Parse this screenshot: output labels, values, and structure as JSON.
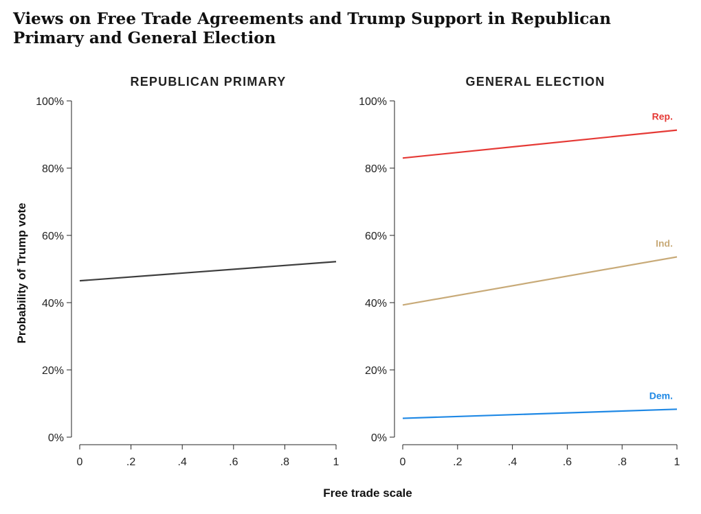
{
  "title": "Views on Free Trade Agreements and Trump Support in Republican Primary and General Election",
  "xlabel": "Free trade scale",
  "ylabel": "Probability of Trump vote",
  "chart_data": [
    {
      "type": "line",
      "title": "REPUBLICAN PRIMARY",
      "x": [
        0,
        1
      ],
      "xticks": [
        "0",
        ".2",
        ".4",
        ".6",
        ".8",
        "1"
      ],
      "yticks": [
        "0%",
        "20%",
        "40%",
        "60%",
        "80%",
        "100%"
      ],
      "xlim": [
        0,
        1
      ],
      "ylim": [
        0,
        100
      ],
      "series": [
        {
          "name": "",
          "values": [
            46.5,
            52.2
          ],
          "color": "#3d3d3d"
        }
      ]
    },
    {
      "type": "line",
      "title": "GENERAL ELECTION",
      "x": [
        0,
        1
      ],
      "xticks": [
        "0",
        ".2",
        ".4",
        ".6",
        ".8",
        "1"
      ],
      "yticks": [
        "0%",
        "20%",
        "40%",
        "60%",
        "80%",
        "100%"
      ],
      "xlim": [
        0,
        1
      ],
      "ylim": [
        0,
        100
      ],
      "series": [
        {
          "name": "Rep.",
          "values": [
            83.0,
            91.3
          ],
          "color": "#e53935"
        },
        {
          "name": "Ind.",
          "values": [
            39.3,
            53.6
          ],
          "color": "#c8aa78"
        },
        {
          "name": "Dem.",
          "values": [
            5.6,
            8.3
          ],
          "color": "#1e88e5"
        }
      ]
    }
  ]
}
